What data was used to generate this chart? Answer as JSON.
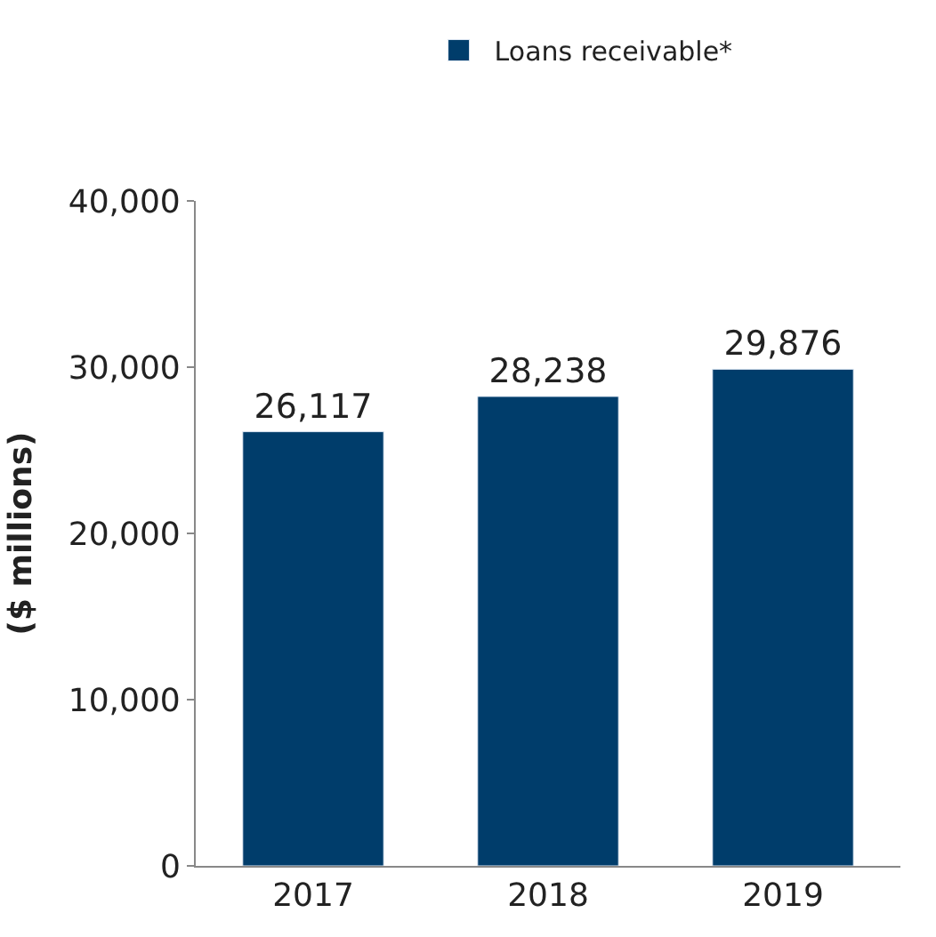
{
  "chart_data": {
    "type": "bar",
    "ylabel": "($ millions)",
    "categories": [
      "2017",
      "2018",
      "2019"
    ],
    "series": [
      {
        "name": "Loans receivable*",
        "color": "#003d6b",
        "values": [
          26117,
          28238,
          29876
        ],
        "value_labels": [
          "26,117",
          "28,238",
          "29,876"
        ]
      }
    ],
    "ylim": [
      0,
      40000
    ],
    "yticks": [
      {
        "value": 0,
        "label": "0"
      },
      {
        "value": 10000,
        "label": "10,000"
      },
      {
        "value": 20000,
        "label": "20,000"
      },
      {
        "value": 30000,
        "label": "30,000"
      },
      {
        "value": 40000,
        "label": "40,000"
      }
    ],
    "legend": "top"
  }
}
